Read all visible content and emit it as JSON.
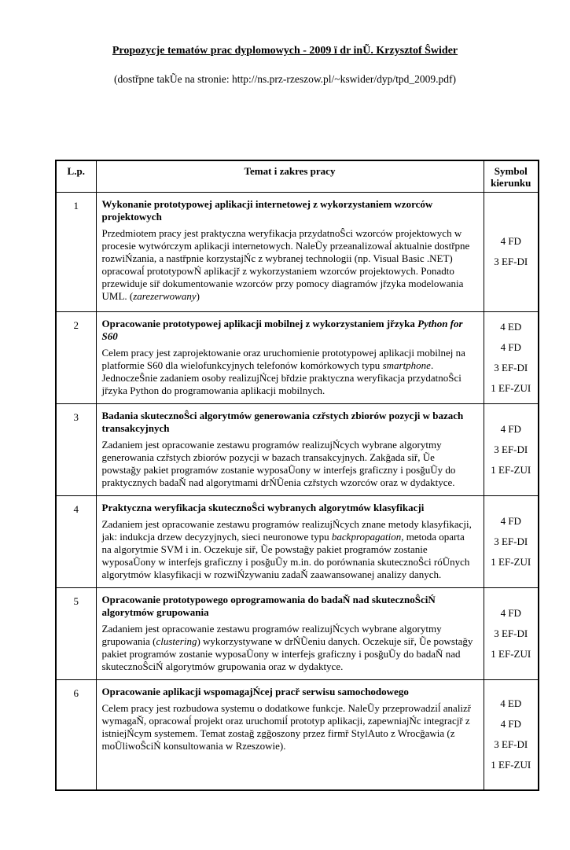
{
  "page": {
    "title": "Propozycje tematów prac dyplomowych - 2009 ï dr inŨ. Krzysztof Ŝwider",
    "subtitle": "(dostřpne takŨe na stronie: http://ns.prz-rzeszow.pl/~kswider/dyp/tpd_2009.pdf)"
  },
  "table": {
    "headers": {
      "lp": "L.p.",
      "topic": "Temat i zakres pracy",
      "symbol": "Symbol kierunku"
    },
    "rows": [
      {
        "num": "1",
        "title_segments": [
          {
            "t": "Wykonanie prototypowej aplikacji internetowej z wykorzystaniem wzorców projektowych"
          }
        ],
        "body_segments": [
          {
            "t": "Przedmiotem pracy  jest praktyczna weryfikacja przydatnoŜci wzorców projektowych w procesie wytwórczym aplikacji internetowych. NaleŨy przeanalizowaĺ aktualnie dostřpne rozwiŃzania, a nastřpnie korzystajŃc z wybranej technologii (np. Visual Basic .NET) opracowaĺ prototypowŃ aplikacjř z wykorzystaniem wzorców projektowych. Ponadto przewiduje siř dokumentowanie wzorców przy pomocy diagramów jřzyka modelowania UML. ("
          },
          {
            "t": "zarezerwowany",
            "i": true
          },
          {
            "t": ")"
          }
        ],
        "symbols": [
          "4 FD",
          "3 EF-DI"
        ]
      },
      {
        "num": "2",
        "title_segments": [
          {
            "t": "Opracowanie prototypowej aplikacji mobilnej z wykorzystaniem jřzyka "
          },
          {
            "t": "Python for S60",
            "i": true
          }
        ],
        "body_segments": [
          {
            "t": "Celem pracy jest zaprojektowanie oraz uruchomienie prototypowej aplikacji mobilnej na platformie S60 dla wielofunkcyjnych telefonów komórkowych typu "
          },
          {
            "t": "smartphone",
            "i": true
          },
          {
            "t": ". JednoczeŜnie zadaniem osoby realizujŃcej břdzie praktyczna weryfikacja przydatnoŜci jřzyka Python do programowania aplikacji mobilnych."
          }
        ],
        "symbols": [
          "4 ED",
          "4 FD",
          "3 EF-DI",
          "1 EF-ZUI"
        ]
      },
      {
        "num": "3",
        "title_segments": [
          {
            "t": "Badania skutecznoŜci algorytmów generowania czřstych zbiorów pozycji w bazach transakcyjnych"
          }
        ],
        "body_segments": [
          {
            "t": "Zadaniem jest opracowanie zestawu programów realizujŃcych wybrane algorytmy generowania czřstych zbiorów pozycji w bazach transakcyjnych. Zakğada siř, Ũe powstağy pakiet programów zostanie wyposaŨony w interfejs graficzny i posğuŨy do praktycznych badaŇ nad algorytmami drŃŨenia czřstych wzorców oraz w dydaktyce."
          }
        ],
        "symbols": [
          "4 FD",
          "3 EF-DI",
          "1 EF-ZUI"
        ]
      },
      {
        "num": "4",
        "title_segments": [
          {
            "t": "Praktyczna weryfikacja skutecznoŜci wybranych algorytmów klasyfikacji"
          }
        ],
        "body_segments": [
          {
            "t": "Zadaniem jest opracowanie zestawu programów realizujŃcych znane metody klasyfikacji, jak: indukcja drzew decyzyjnych, sieci neuronowe typu "
          },
          {
            "t": "backpropagation",
            "i": true
          },
          {
            "t": ", metoda oparta na algorytmie SVM  i in. Oczekuje siř, Ũe powstağy pakiet programów zostanie wyposaŨony w interfejs graficzny i posğuŨy m.in. do porównania skutecznoŜci róŨnych algorytmów klasyfikacji w rozwiŃzywaniu zadaŇ zaawansowanej analizy danych."
          }
        ],
        "symbols": [
          "4 FD",
          "3 EF-DI",
          "1 EF-ZUI"
        ]
      },
      {
        "num": "5",
        "title_segments": [
          {
            "t": "Opracowanie prototypowego oprogramowania do badaŇ nad skutecznoŜciŃ algorytmów grupowania"
          }
        ],
        "body_segments": [
          {
            "t": "Zadaniem jest opracowanie zestawu programów realizujŃcych wybrane algorytmy grupowania ("
          },
          {
            "t": "clustering",
            "i": true
          },
          {
            "t": ") wykorzystywane w drŃŨeniu danych. Oczekuje siř, Ũe powstağy pakiet programów zostanie wyposaŨony w interfejs graficzny i posğuŨy do badaŇ nad skutecznoŜciŃ algorytmów grupowania oraz w dydaktyce."
          }
        ],
        "symbols": [
          "4 FD",
          "3 EF-DI",
          "1 EF-ZUI"
        ]
      },
      {
        "num": "6",
        "title_segments": [
          {
            "t": "Opracowanie aplikacji wspomagajŃcej pracř serwisu samochodowego"
          }
        ],
        "body_segments": [
          {
            "t": "Celem pracy jest rozbudowa systemu o dodatkowe funkcje. NaleŨy przeprowadziĺ analizř wymagaŇ, opracowaĺ projekt oraz uruchomiĺ prototyp aplikacji, zapewniajŃc integracjř z istniejŃcym systemem. Temat zostağ zgğoszony przez firmř StylAuto z Wrocğawia (z moŨliwoŜciŃ konsultowania w Rzeszowie)."
          }
        ],
        "symbols": [
          "4 ED",
          "4 FD",
          "3 EF-DI",
          "1 EF-ZUI"
        ]
      }
    ]
  }
}
